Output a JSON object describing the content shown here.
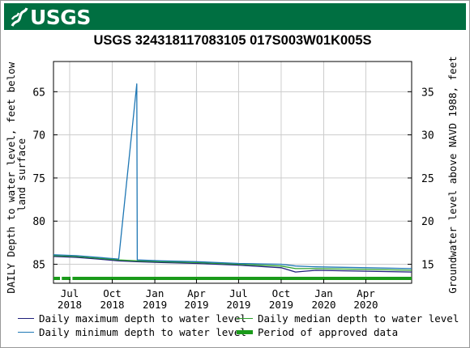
{
  "header": {
    "logo_text": "USGS",
    "colors": {
      "banner": "#006f41",
      "logo": "#ffffff"
    }
  },
  "chart_data": {
    "type": "line",
    "title": "USGS 324318117083105 017S003W01K005S",
    "ylabel_left": "DAILY Depth to water level, feet below land surface",
    "ylabel_right": "Groundwater level above NAVD 1988, feet",
    "y_left": {
      "ticks": [
        65,
        70,
        75,
        80,
        85
      ],
      "range_top": 61.5,
      "range_bottom": 87.2,
      "inverted": true
    },
    "y_right": {
      "ticks": [
        35,
        30,
        25,
        20,
        15
      ],
      "offset": 100
    },
    "x_ticks": [
      {
        "month": "Jul",
        "year": "2018",
        "date": "2018-07-01"
      },
      {
        "month": "Oct",
        "year": "2018",
        "date": "2018-10-01"
      },
      {
        "month": "Jan",
        "year": "2019",
        "date": "2019-01-01"
      },
      {
        "month": "Apr",
        "year": "2019",
        "date": "2019-04-01"
      },
      {
        "month": "Jul",
        "year": "2019",
        "date": "2019-07-01"
      },
      {
        "month": "Oct",
        "year": "2019",
        "date": "2019-10-01"
      },
      {
        "month": "Jan",
        "year": "2020",
        "date": "2020-01-01"
      },
      {
        "month": "Apr",
        "year": "2020",
        "date": "2020-04-01"
      }
    ],
    "x_range": [
      "2018-05-27",
      "2020-07-09"
    ],
    "grid": true,
    "series": [
      {
        "name": "Daily maximum depth to water level",
        "color": "#1f1f7a",
        "points": [
          [
            "2018-05-27",
            84.1
          ],
          [
            "2018-07-15",
            84.2
          ],
          [
            "2018-09-01",
            84.4
          ],
          [
            "2018-10-15",
            84.6
          ],
          [
            "2018-11-23",
            84.7
          ],
          [
            "2019-01-15",
            84.8
          ],
          [
            "2019-04-01",
            84.9
          ],
          [
            "2019-07-01",
            85.1
          ],
          [
            "2019-10-01",
            85.4
          ],
          [
            "2019-11-01",
            85.9
          ],
          [
            "2019-12-15",
            85.7
          ],
          [
            "2020-04-01",
            85.8
          ],
          [
            "2020-07-09",
            85.9
          ]
        ]
      },
      {
        "name": "Daily median depth to water level",
        "color": "#2ca02c",
        "points": [
          [
            "2018-05-27",
            84.0
          ],
          [
            "2018-07-15",
            84.1
          ],
          [
            "2018-09-01",
            84.3
          ],
          [
            "2018-10-15",
            84.5
          ],
          [
            "2018-11-23",
            84.6
          ],
          [
            "2019-01-15",
            84.7
          ],
          [
            "2019-04-01",
            84.8
          ],
          [
            "2019-07-01",
            85.0
          ],
          [
            "2019-10-01",
            85.2
          ],
          [
            "2019-11-01",
            85.5
          ],
          [
            "2019-12-15",
            85.5
          ],
          [
            "2020-04-01",
            85.6
          ],
          [
            "2020-07-09",
            85.7
          ]
        ]
      },
      {
        "name": "Daily minimum depth to water level",
        "color": "#1f77b4",
        "points": [
          [
            "2018-05-27",
            83.9
          ],
          [
            "2018-07-15",
            84.0
          ],
          [
            "2018-09-01",
            84.2
          ],
          [
            "2018-10-15",
            84.4
          ],
          [
            "2018-11-23",
            64.1
          ],
          [
            "2018-11-24",
            84.5
          ],
          [
            "2019-01-15",
            84.6
          ],
          [
            "2019-04-01",
            84.7
          ],
          [
            "2019-07-01",
            84.9
          ],
          [
            "2019-10-01",
            85.0
          ],
          [
            "2019-11-01",
            85.2
          ],
          [
            "2019-12-15",
            85.3
          ],
          [
            "2020-04-01",
            85.4
          ],
          [
            "2020-07-09",
            85.5
          ]
        ]
      }
    ],
    "approved_period": {
      "name": "Period of approved data",
      "color": "#1a9a1a",
      "start": "2018-05-27",
      "end": "2020-07-09",
      "gaps": [
        [
          "2018-06-10",
          "2018-06-14"
        ],
        [
          "2018-07-03",
          "2018-07-07"
        ]
      ]
    },
    "legend": {
      "max": "Daily maximum depth to water level",
      "median": "Daily median depth to water level",
      "min": "Daily minimum depth to water level",
      "approved": "Period of approved data"
    }
  }
}
